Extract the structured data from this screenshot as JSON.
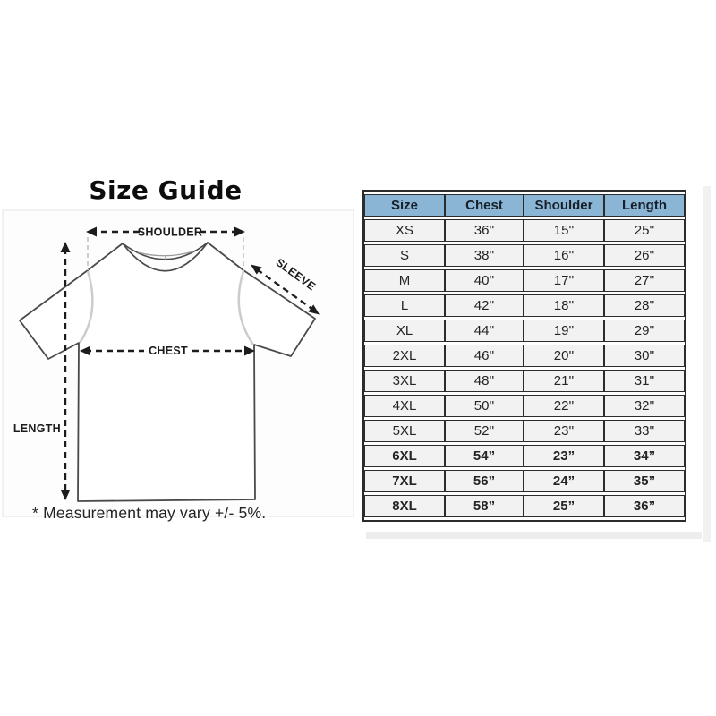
{
  "left_panel": {
    "title": "Size Guide",
    "note": "* Measurement may vary +/- 5%.",
    "diagram_labels": {
      "shoulder": "SHOULDER",
      "sleeve": "SLEEVE",
      "chest": "CHEST",
      "length": "LENGTH"
    }
  },
  "size_table": {
    "columns": [
      "Size",
      "Chest",
      "Shoulder",
      "Length"
    ],
    "colors": {
      "header_bg": "#8bb5d5",
      "header_text": "#16202a",
      "cell_bg": "#f2f2f2",
      "border": "#2c2c2c"
    },
    "rows": [
      {
        "size": "XS",
        "chest": "36''",
        "shoulder": "15''",
        "length": "25''",
        "bold": false
      },
      {
        "size": "S",
        "chest": "38''",
        "shoulder": "16''",
        "length": "26''",
        "bold": false
      },
      {
        "size": "M",
        "chest": "40''",
        "shoulder": "17''",
        "length": "27''",
        "bold": false
      },
      {
        "size": "L",
        "chest": "42''",
        "shoulder": "18''",
        "length": "28''",
        "bold": false
      },
      {
        "size": "XL",
        "chest": "44''",
        "shoulder": "19''",
        "length": "29''",
        "bold": false
      },
      {
        "size": "2XL",
        "chest": "46''",
        "shoulder": "20''",
        "length": "30''",
        "bold": false
      },
      {
        "size": "3XL",
        "chest": "48''",
        "shoulder": "21''",
        "length": "31''",
        "bold": false
      },
      {
        "size": "4XL",
        "chest": "50''",
        "shoulder": "22''",
        "length": "32''",
        "bold": false
      },
      {
        "size": "5XL",
        "chest": "52''",
        "shoulder": "23''",
        "length": "33''",
        "bold": false
      },
      {
        "size": "6XL",
        "chest": "54”",
        "shoulder": "23”",
        "length": "34”",
        "bold": true
      },
      {
        "size": "7XL",
        "chest": "56”",
        "shoulder": "24”",
        "length": "35”",
        "bold": true
      },
      {
        "size": "8XL",
        "chest": "58”",
        "shoulder": "25”",
        "length": "36”",
        "bold": true
      }
    ]
  }
}
